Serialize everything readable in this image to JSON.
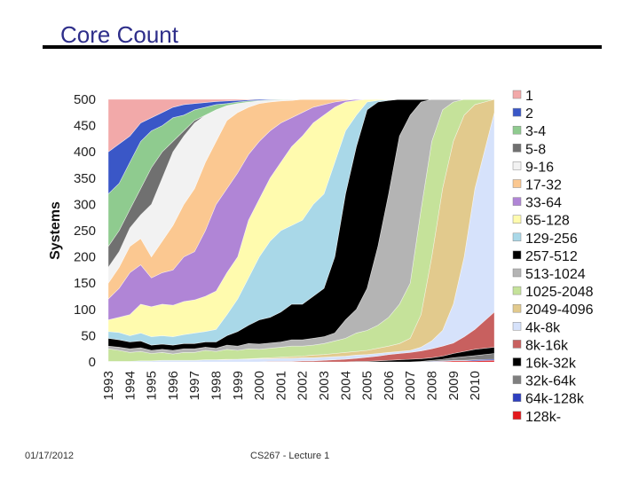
{
  "slide": {
    "title": "Core Count",
    "footer_date": "01/17/2012",
    "footer_lecture": "CS267 - Lecture 1"
  },
  "chart_data": {
    "type": "area",
    "stacked": true,
    "title": "",
    "xlabel": "",
    "ylabel": "Systems",
    "ylim": [
      0,
      500
    ],
    "yticks": [
      0,
      50,
      100,
      150,
      200,
      250,
      300,
      350,
      400,
      450,
      500
    ],
    "xlim": [
      1993,
      2010.9
    ],
    "xticks": [
      "1993",
      "1994",
      "1995",
      "1996",
      "1997",
      "1998",
      "1999",
      "2000",
      "2001",
      "2002",
      "2003",
      "2004",
      "2005",
      "2006",
      "2007",
      "2008",
      "2009",
      "2010"
    ],
    "legend_position": "right",
    "boundary_x": [
      1993,
      1993.5,
      1994,
      1994.5,
      1995,
      1995.5,
      1996,
      1996.5,
      1997,
      1997.5,
      1998,
      1998.5,
      1999,
      1999.5,
      2000,
      2000.5,
      2001,
      2001.5,
      2002,
      2002.5,
      2003,
      2003.5,
      2004,
      2004.5,
      2005,
      2005.5,
      2006,
      2006.5,
      2007,
      2007.5,
      2008,
      2008.5,
      2009,
      2009.5,
      2010,
      2010.9
    ],
    "series": [
      {
        "name": "128k-",
        "color": "#e3191c",
        "upper": [
          0,
          0,
          0,
          0,
          0,
          0,
          0,
          0,
          0,
          0,
          0,
          0,
          0,
          0,
          0,
          0,
          0,
          0,
          0,
          0,
          0,
          0,
          0,
          0,
          0,
          0,
          0,
          0,
          0,
          0,
          0,
          1,
          2,
          2,
          2,
          3
        ]
      },
      {
        "name": "64k-128k",
        "color": "#2e3fbf",
        "upper": [
          0,
          0,
          0,
          0,
          0,
          0,
          0,
          0,
          0,
          0,
          0,
          0,
          0,
          0,
          0,
          0,
          0,
          0,
          0,
          0,
          0,
          0,
          0,
          0,
          0,
          0,
          0,
          0,
          0,
          0,
          1,
          2,
          3,
          3,
          4,
          5
        ]
      },
      {
        "name": "32k-64k",
        "color": "#7f7f7f",
        "upper": [
          0,
          0,
          0,
          0,
          0,
          0,
          0,
          0,
          0,
          0,
          0,
          0,
          0,
          0,
          0,
          0,
          0,
          0,
          0,
          0,
          0,
          0,
          0,
          0,
          0,
          0,
          0,
          0,
          0,
          1,
          3,
          5,
          8,
          10,
          12,
          16
        ]
      },
      {
        "name": "16k-32k",
        "color": "#000000",
        "upper": [
          0,
          0,
          0,
          0,
          0,
          0,
          0,
          0,
          0,
          0,
          0,
          0,
          0,
          0,
          0,
          0,
          0,
          0,
          0,
          0,
          0,
          0,
          0,
          1,
          1,
          2,
          3,
          4,
          5,
          6,
          8,
          11,
          16,
          20,
          24,
          28
        ]
      },
      {
        "name": "8k-16k",
        "color": "#c8605f",
        "upper": [
          0,
          0,
          0,
          0,
          0,
          0,
          0,
          0,
          0,
          0,
          0,
          0,
          0,
          0,
          0,
          1,
          1,
          1,
          2,
          2,
          3,
          4,
          5,
          7,
          9,
          11,
          14,
          16,
          18,
          21,
          25,
          30,
          36,
          48,
          62,
          95
        ]
      },
      {
        "name": "4k-8k",
        "color": "#d6e2fb",
        "upper": [
          1,
          1,
          1,
          2,
          2,
          3,
          3,
          3,
          3,
          4,
          4,
          4,
          5,
          5,
          6,
          6,
          7,
          7,
          8,
          8,
          9,
          10,
          11,
          13,
          14,
          16,
          18,
          20,
          22,
          28,
          40,
          60,
          110,
          200,
          330,
          475
        ]
      },
      {
        "name": "2049-4096",
        "color": "#e2ca8d",
        "upper": [
          1,
          1,
          1,
          2,
          2,
          3,
          3,
          3,
          3,
          4,
          4,
          5,
          5,
          6,
          7,
          8,
          9,
          10,
          11,
          13,
          14,
          16,
          18,
          20,
          22,
          26,
          30,
          35,
          45,
          90,
          200,
          330,
          420,
          470,
          490,
          500
        ]
      },
      {
        "name": "1025-2048",
        "color": "#c5e29a",
        "upper": [
          25,
          22,
          18,
          20,
          16,
          18,
          15,
          18,
          18,
          22,
          20,
          24,
          22,
          25,
          24,
          26,
          28,
          30,
          30,
          32,
          35,
          40,
          45,
          55,
          60,
          70,
          85,
          110,
          150,
          290,
          420,
          480,
          495,
          500,
          500,
          500
        ]
      },
      {
        "name": "513-1024",
        "color": "#b4b4b4",
        "upper": [
          30,
          28,
          25,
          27,
          22,
          24,
          22,
          25,
          25,
          28,
          26,
          32,
          30,
          35,
          34,
          36,
          38,
          42,
          42,
          45,
          48,
          55,
          80,
          100,
          140,
          220,
          320,
          430,
          470,
          495,
          500,
          500,
          500,
          500,
          500,
          500
        ]
      },
      {
        "name": "257-512",
        "color": "#000000",
        "upper": [
          45,
          42,
          38,
          40,
          32,
          34,
          32,
          35,
          35,
          38,
          38,
          50,
          58,
          70,
          80,
          85,
          95,
          110,
          110,
          125,
          140,
          200,
          320,
          410,
          480,
          495,
          498,
          500,
          500,
          500,
          500,
          500,
          500,
          500,
          500,
          500
        ]
      },
      {
        "name": "129-256",
        "color": "#a9d8e8",
        "upper": [
          58,
          56,
          50,
          55,
          48,
          50,
          48,
          52,
          55,
          58,
          62,
          90,
          120,
          160,
          200,
          230,
          250,
          260,
          270,
          300,
          320,
          380,
          440,
          470,
          495,
          498,
          499,
          500,
          500,
          500,
          500,
          500,
          500,
          500,
          500,
          500
        ]
      },
      {
        "name": "65-128",
        "color": "#fffbae",
        "upper": [
          80,
          85,
          90,
          110,
          105,
          110,
          108,
          115,
          118,
          125,
          135,
          170,
          200,
          270,
          310,
          350,
          380,
          410,
          430,
          455,
          470,
          485,
          495,
          498,
          500,
          500,
          500,
          500,
          500,
          500,
          500,
          500,
          500,
          500,
          500,
          500
        ]
      },
      {
        "name": "33-64",
        "color": "#b085d6",
        "upper": [
          120,
          140,
          170,
          185,
          160,
          170,
          175,
          200,
          210,
          250,
          300,
          330,
          360,
          395,
          420,
          440,
          455,
          465,
          475,
          485,
          490,
          495,
          498,
          500,
          500,
          500,
          500,
          500,
          500,
          500,
          500,
          500,
          500,
          500,
          500,
          500
        ]
      },
      {
        "name": "17-32",
        "color": "#fbc891",
        "upper": [
          150,
          180,
          220,
          235,
          200,
          230,
          260,
          300,
          330,
          380,
          420,
          460,
          475,
          485,
          492,
          495,
          497,
          498,
          500,
          500,
          500,
          500,
          500,
          500,
          500,
          500,
          500,
          500,
          500,
          500,
          500,
          500,
          500,
          500,
          500,
          500
        ]
      },
      {
        "name": "9-16",
        "color": "#f2f2f2",
        "upper": [
          180,
          210,
          255,
          280,
          300,
          350,
          400,
          430,
          455,
          470,
          480,
          488,
          492,
          495,
          497,
          498,
          499,
          500,
          500,
          500,
          500,
          500,
          500,
          500,
          500,
          500,
          500,
          500,
          500,
          500,
          500,
          500,
          500,
          500,
          500,
          500
        ]
      },
      {
        "name": "5-8",
        "color": "#707070",
        "upper": [
          220,
          250,
          290,
          330,
          370,
          400,
          420,
          440,
          460,
          470,
          480,
          488,
          492,
          495,
          497,
          498,
          499,
          500,
          500,
          500,
          500,
          500,
          500,
          500,
          500,
          500,
          500,
          500,
          500,
          500,
          500,
          500,
          500,
          500,
          500,
          500
        ]
      },
      {
        "name": "3-4",
        "color": "#8fcb8f",
        "upper": [
          320,
          340,
          380,
          420,
          440,
          450,
          465,
          470,
          480,
          485,
          490,
          492,
          495,
          497,
          498,
          499,
          500,
          500,
          500,
          500,
          500,
          500,
          500,
          500,
          500,
          500,
          500,
          500,
          500,
          500,
          500,
          500,
          500,
          500,
          500,
          500
        ]
      },
      {
        "name": "2",
        "color": "#3a57c7",
        "upper": [
          400,
          415,
          430,
          455,
          465,
          475,
          485,
          490,
          492,
          494,
          496,
          497,
          498,
          499,
          500,
          500,
          500,
          500,
          500,
          500,
          500,
          500,
          500,
          500,
          500,
          500,
          500,
          500,
          500,
          500,
          500,
          500,
          500,
          500,
          500,
          500
        ]
      },
      {
        "name": "1",
        "color": "#f2a9a9",
        "upper": [
          500,
          500,
          500,
          500,
          500,
          500,
          500,
          500,
          500,
          500,
          500,
          500,
          500,
          500,
          500,
          500,
          500,
          500,
          500,
          500,
          500,
          500,
          500,
          500,
          500,
          500,
          500,
          500,
          500,
          500,
          500,
          500,
          500,
          500,
          500,
          500
        ]
      }
    ]
  }
}
